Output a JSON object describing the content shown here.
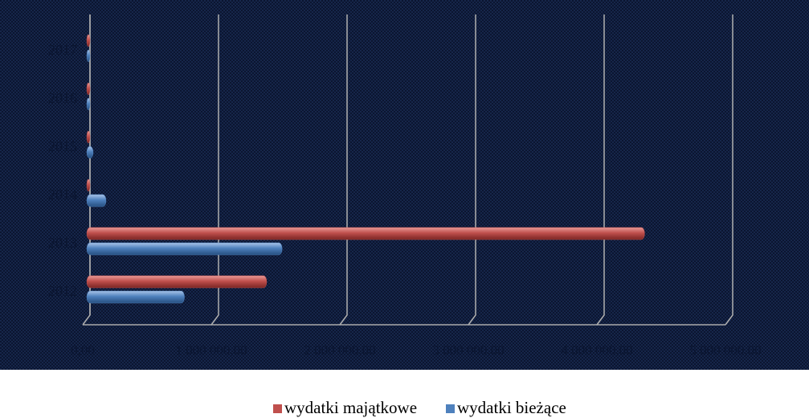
{
  "chart_data": {
    "type": "bar",
    "orientation": "horizontal",
    "categories": [
      "2012",
      "2013",
      "2014",
      "2015",
      "2016",
      "2017"
    ],
    "series": [
      {
        "name": "wydatki majątkowe",
        "color": "#c0504d",
        "values": [
          1400000,
          4340000,
          10000,
          10000,
          10000,
          10000
        ]
      },
      {
        "name": "wydatki bieżące",
        "color": "#4f81bd",
        "values": [
          760000,
          1520000,
          150000,
          50000,
          20000,
          20000
        ]
      }
    ],
    "xlim": [
      0,
      5000000
    ],
    "xticks": [
      {
        "value": 0,
        "label": "0,00"
      },
      {
        "value": 1000000,
        "label": "1 000 000,00"
      },
      {
        "value": 2000000,
        "label": "2 000 000,00"
      },
      {
        "value": 3000000,
        "label": "3 000 000,00"
      },
      {
        "value": 4000000,
        "label": "4 000 000,00"
      },
      {
        "value": 5000000,
        "label": "5 000 000,00"
      }
    ],
    "grid": true,
    "legend": "bottom"
  }
}
